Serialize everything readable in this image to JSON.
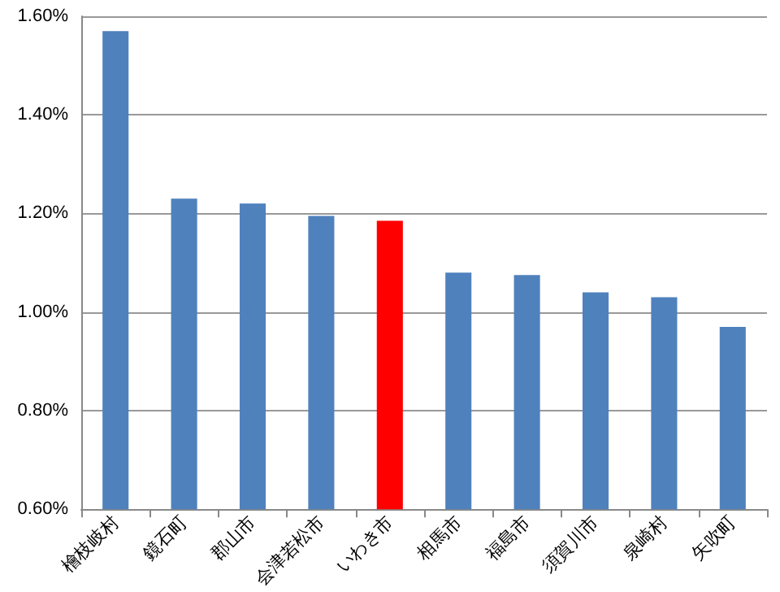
{
  "chart_data": {
    "type": "bar",
    "categories": [
      "檜枝岐村",
      "鏡石町",
      "郡山市",
      "会津若松市",
      "いわき市",
      "相馬市",
      "福島市",
      "須賀川市",
      "泉崎村",
      "矢吹町"
    ],
    "values": [
      1.57,
      1.23,
      1.22,
      1.195,
      1.185,
      1.08,
      1.075,
      1.04,
      1.03,
      0.97
    ],
    "colors": [
      "#4f81bd",
      "#4f81bd",
      "#4f81bd",
      "#4f81bd",
      "#ff0000",
      "#4f81bd",
      "#4f81bd",
      "#4f81bd",
      "#4f81bd",
      "#4f81bd"
    ],
    "ylim": [
      0.6,
      1.6
    ],
    "yticks": [
      {
        "value": 0.6,
        "label": "0.60%"
      },
      {
        "value": 0.8,
        "label": "0.80%"
      },
      {
        "value": 1.0,
        "label": "1.00%"
      },
      {
        "value": 1.2,
        "label": "1.20%"
      },
      {
        "value": 1.4,
        "label": "1.40%"
      },
      {
        "value": 1.6,
        "label": "1.60%"
      }
    ],
    "grid": "y"
  }
}
